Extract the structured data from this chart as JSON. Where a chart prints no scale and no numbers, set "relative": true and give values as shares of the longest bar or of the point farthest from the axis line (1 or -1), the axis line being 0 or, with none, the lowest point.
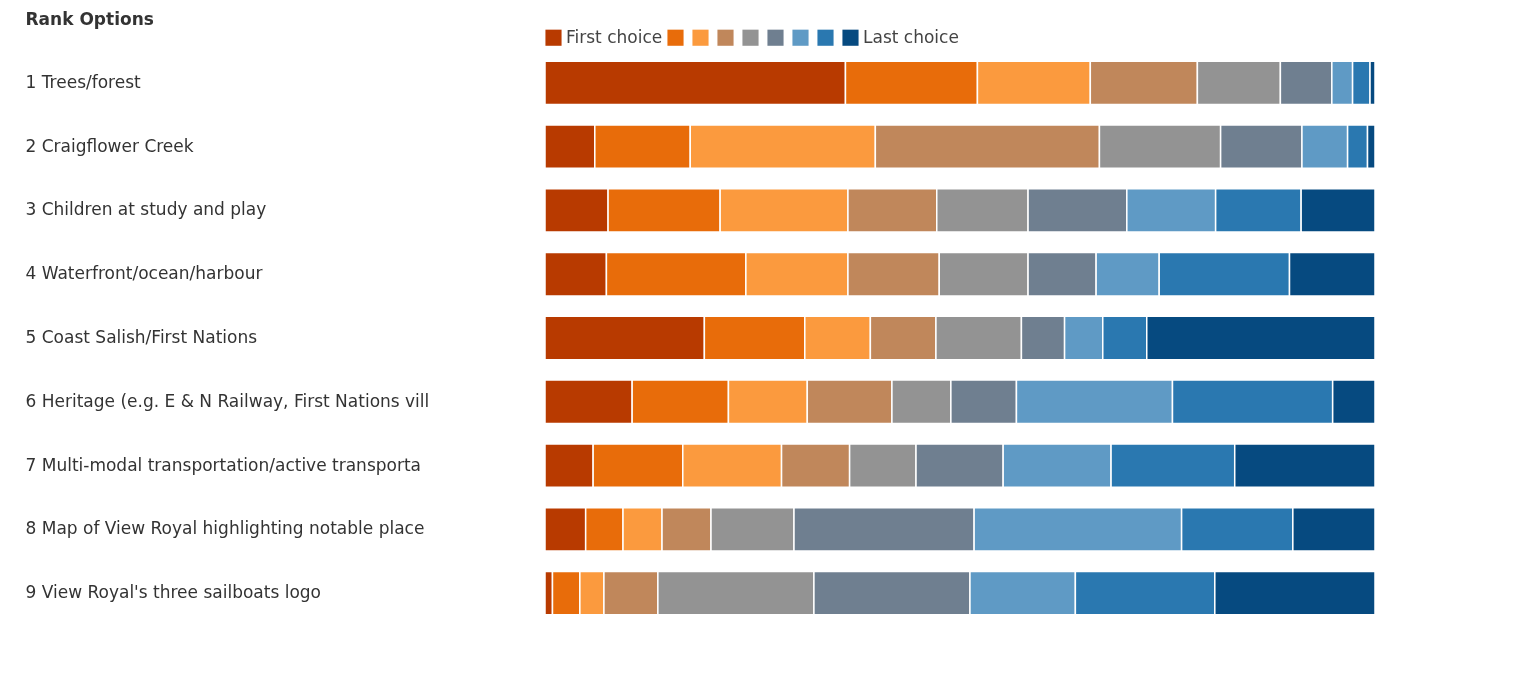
{
  "chart_data": {
    "type": "bar",
    "orientation": "horizontal",
    "stacked": true,
    "relative": true,
    "legend": "top",
    "ylabel": "Rank Options",
    "categories": [
      "1 Trees/forest",
      "2 Craigflower Creek",
      "3 Children at study and play",
      "4 Waterfront/ocean/harbour",
      "5 Coast Salish/First Nations",
      "6 Heritage (e.g. E & N Railway, First Nations vill",
      "7 Multi-modal transportation/active transporta",
      "8 Map of View Royal highlighting notable place",
      "9 View Royal's three sailboats logo"
    ],
    "series": [
      {
        "name": "First choice",
        "color": "#b83a00",
        "values": [
          0.362,
          0.06,
          0.076,
          0.074,
          0.192,
          0.105,
          0.058,
          0.049,
          0.009
        ]
      },
      {
        "color": "#e86c0a",
        "values": [
          0.159,
          0.115,
          0.135,
          0.168,
          0.121,
          0.116,
          0.108,
          0.045,
          0.033
        ]
      },
      {
        "color": "#fb9a3e",
        "values": [
          0.136,
          0.223,
          0.154,
          0.123,
          0.079,
          0.095,
          0.119,
          0.047,
          0.029
        ]
      },
      {
        "color": "#c0875b",
        "values": [
          0.129,
          0.27,
          0.107,
          0.11,
          0.079,
          0.102,
          0.082,
          0.059,
          0.065
        ]
      },
      {
        "color": "#939393",
        "values": [
          0.1,
          0.146,
          0.11,
          0.107,
          0.103,
          0.071,
          0.08,
          0.1,
          0.188
        ]
      },
      {
        "color": "#6f7f90",
        "values": [
          0.062,
          0.098,
          0.119,
          0.082,
          0.052,
          0.079,
          0.105,
          0.217,
          0.188
        ]
      },
      {
        "color": "#5f9ac5",
        "values": [
          0.025,
          0.055,
          0.107,
          0.076,
          0.046,
          0.188,
          0.13,
          0.25,
          0.127
        ]
      },
      {
        "color": "#2a78b0",
        "values": [
          0.021,
          0.024,
          0.103,
          0.157,
          0.053,
          0.193,
          0.149,
          0.134,
          0.168
        ]
      },
      {
        "name": "Last choice",
        "color": "#064a80",
        "values": [
          0.006,
          0.009,
          0.089,
          0.103,
          0.275,
          0.051,
          0.169,
          0.099,
          0.193
        ]
      }
    ]
  }
}
